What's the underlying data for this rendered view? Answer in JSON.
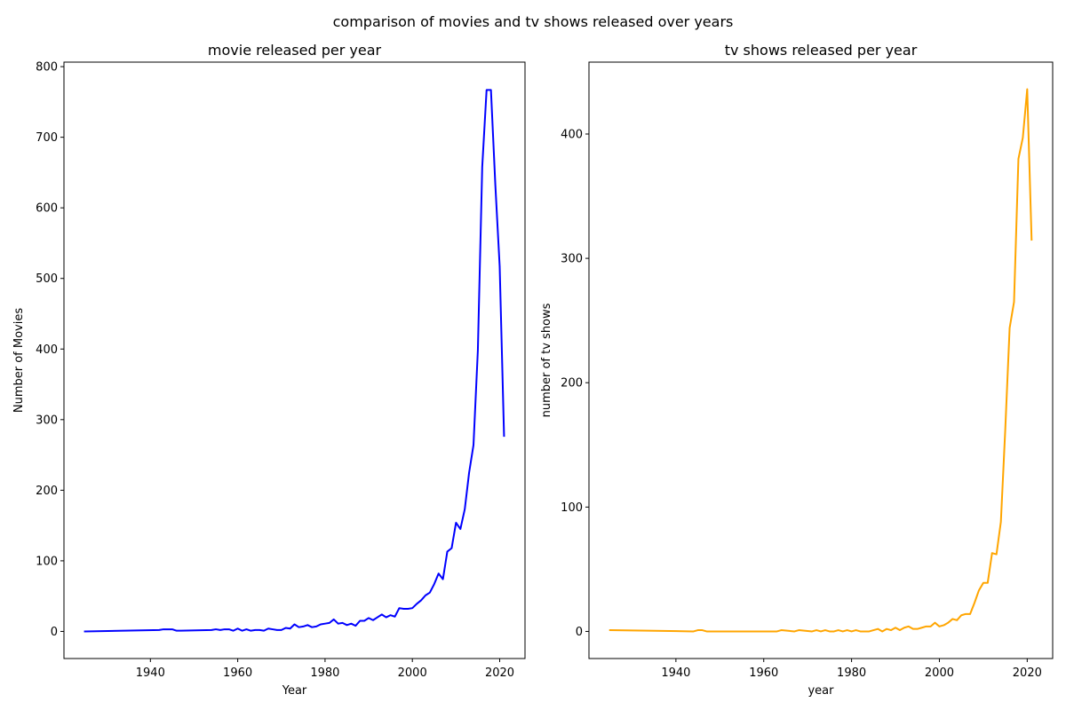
{
  "figure": {
    "suptitle": "comparison of movies and tv shows released over years"
  },
  "chart_data": [
    {
      "type": "line",
      "title": "movie released per year",
      "xlabel": "Year",
      "ylabel": "Number of Movies",
      "xlim": [
        1920.2,
        2025.8
      ],
      "ylim": [
        -38.4,
        806.4
      ],
      "xticks": [
        1940,
        1960,
        1980,
        2000,
        2020
      ],
      "yticks": [
        0,
        100,
        200,
        300,
        400,
        500,
        600,
        700,
        800
      ],
      "grid": false,
      "series": [
        {
          "color": "#0000ff",
          "x": [
            1925,
            1942,
            1943,
            1944,
            1945,
            1946,
            1947,
            1954,
            1955,
            1956,
            1957,
            1958,
            1959,
            1960,
            1961,
            1962,
            1963,
            1964,
            1965,
            1966,
            1967,
            1968,
            1969,
            1970,
            1971,
            1972,
            1973,
            1974,
            1975,
            1976,
            1977,
            1978,
            1979,
            1980,
            1981,
            1982,
            1983,
            1984,
            1985,
            1986,
            1987,
            1988,
            1989,
            1990,
            1991,
            1992,
            1993,
            1994,
            1995,
            1996,
            1997,
            1998,
            1999,
            2000,
            2001,
            2002,
            2003,
            2004,
            2005,
            2006,
            2007,
            2008,
            2009,
            2010,
            2011,
            2012,
            2013,
            2014,
            2015,
            2016,
            2017,
            2018,
            2019,
            2020,
            2021
          ],
          "y": [
            0,
            2,
            3,
            3,
            3,
            1,
            1,
            2,
            3,
            2,
            3,
            3,
            1,
            4,
            1,
            3,
            1,
            2,
            2,
            1,
            4,
            3,
            2,
            2,
            5,
            4,
            10,
            6,
            7,
            9,
            6,
            7,
            10,
            11,
            12,
            17,
            11,
            12,
            9,
            11,
            8,
            15,
            15,
            19,
            16,
            20,
            24,
            20,
            23,
            21,
            33,
            32,
            32,
            33,
            39,
            44,
            51,
            55,
            67,
            82,
            74,
            113,
            118,
            154,
            145,
            173,
            225,
            264,
            398,
            658,
            767,
            767,
            633,
            517,
            277
          ]
        }
      ]
    },
    {
      "type": "line",
      "title": "tv shows released per year",
      "xlabel": "year",
      "ylabel": "number of tv shows",
      "xlim": [
        1920.2,
        2025.8
      ],
      "ylim": [
        -21.8,
        457.8
      ],
      "xticks": [
        1940,
        1960,
        1980,
        2000,
        2020
      ],
      "yticks": [
        0,
        100,
        200,
        300,
        400
      ],
      "grid": false,
      "series": [
        {
          "color": "#ffa500",
          "x": [
            1925,
            1944,
            1945,
            1946,
            1947,
            1963,
            1964,
            1967,
            1968,
            1971,
            1972,
            1973,
            1974,
            1975,
            1976,
            1977,
            1978,
            1979,
            1980,
            1981,
            1982,
            1983,
            1984,
            1985,
            1986,
            1987,
            1988,
            1989,
            1990,
            1991,
            1992,
            1993,
            1994,
            1995,
            1996,
            1997,
            1998,
            1999,
            2000,
            2001,
            2002,
            2003,
            2004,
            2005,
            2006,
            2007,
            2008,
            2009,
            2010,
            2011,
            2012,
            2013,
            2014,
            2015,
            2016,
            2017,
            2018,
            2019,
            2020,
            2021
          ],
          "y": [
            1,
            0,
            1,
            1,
            0,
            0,
            1,
            0,
            1,
            0,
            1,
            0,
            1,
            0,
            0,
            1,
            0,
            1,
            0,
            1,
            0,
            0,
            0,
            1,
            2,
            0,
            2,
            1,
            3,
            1,
            3,
            4,
            2,
            2,
            3,
            4,
            4,
            7,
            4,
            5,
            7,
            10,
            9,
            13,
            14,
            14,
            23,
            33,
            39,
            39,
            63,
            62,
            88,
            162,
            244,
            265,
            380,
            397,
            436,
            315
          ]
        }
      ]
    }
  ]
}
